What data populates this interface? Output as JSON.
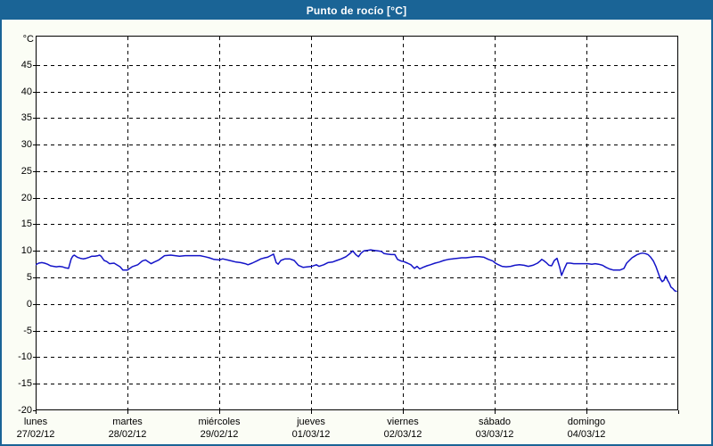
{
  "window": {
    "title": "Punto de rocío [°C]"
  },
  "colors": {
    "window_border": "#1a6496",
    "titlebar_bg": "#1a6496",
    "title_text": "#ffffff",
    "panel_bg": "#fbfdf5",
    "plot_bg": "#ffffff",
    "grid": "#000000",
    "axis": "#000000",
    "line": "#1414c8"
  },
  "y_axis": {
    "unit_label": "°C"
  },
  "chart_data": {
    "type": "line",
    "title": "Punto de rocío [°C]",
    "ylabel": "°C",
    "ylim": [
      -20,
      50.5
    ],
    "y_ticks": [
      45,
      40,
      35,
      30,
      25,
      20,
      15,
      10,
      5,
      0,
      -5,
      -10,
      -15,
      -20
    ],
    "grid": "dashed",
    "legend": "none",
    "x_unit": "hour_of_week",
    "x_range": [
      0,
      168
    ],
    "x_categories_days": [
      {
        "name": "lunes",
        "date": "27/02/12"
      },
      {
        "name": "martes",
        "date": "28/02/12"
      },
      {
        "name": "miércoles",
        "date": "29/02/12"
      },
      {
        "name": "jueves",
        "date": "01/03/12"
      },
      {
        "name": "viernes",
        "date": "02/03/12"
      },
      {
        "name": "sábado",
        "date": "03/03/12"
      },
      {
        "name": "domingo",
        "date": "04/03/12"
      }
    ],
    "series": [
      {
        "name": "Punto de rocío",
        "color": "#1414c8",
        "points": [
          [
            0,
            7.4
          ],
          [
            0.8,
            7.7
          ],
          [
            1.6,
            7.8
          ],
          [
            2.3,
            7.7
          ],
          [
            3.1,
            7.5
          ],
          [
            3.9,
            7.2
          ],
          [
            4.7,
            7.1
          ],
          [
            5.4,
            7.0
          ],
          [
            6.2,
            7.1
          ],
          [
            7.0,
            7.0
          ],
          [
            7.8,
            6.8
          ],
          [
            8.6,
            6.7
          ],
          [
            9.3,
            8.5
          ],
          [
            9.7,
            9.0
          ],
          [
            10.1,
            9.2
          ],
          [
            10.9,
            8.8
          ],
          [
            11.7,
            8.6
          ],
          [
            12.4,
            8.5
          ],
          [
            13.2,
            8.6
          ],
          [
            14.0,
            8.8
          ],
          [
            14.7,
            9.0
          ],
          [
            15.5,
            9.0
          ],
          [
            16.3,
            9.1
          ],
          [
            16.7,
            9.2
          ],
          [
            17.1,
            9.0
          ],
          [
            17.9,
            8.2
          ],
          [
            18.6,
            8.0
          ],
          [
            19.3,
            7.6
          ],
          [
            20.5,
            7.7
          ],
          [
            22.1,
            7.0
          ],
          [
            22.8,
            6.4
          ],
          [
            24.0,
            6.4
          ],
          [
            25.2,
            7.0
          ],
          [
            26.7,
            7.4
          ],
          [
            27.9,
            8.1
          ],
          [
            28.7,
            8.3
          ],
          [
            30.2,
            7.6
          ],
          [
            31.0,
            7.9
          ],
          [
            32.2,
            8.3
          ],
          [
            33.7,
            9.1
          ],
          [
            35.3,
            9.2
          ],
          [
            37.6,
            9.0
          ],
          [
            39.1,
            9.1
          ],
          [
            40.8,
            9.1
          ],
          [
            43.0,
            9.1
          ],
          [
            44.3,
            8.9
          ],
          [
            45.4,
            8.7
          ],
          [
            46.6,
            8.4
          ],
          [
            48.0,
            8.3
          ],
          [
            48.9,
            8.5
          ],
          [
            50.1,
            8.3
          ],
          [
            51.3,
            8.1
          ],
          [
            52.4,
            7.9
          ],
          [
            53.6,
            7.8
          ],
          [
            54.8,
            7.6
          ],
          [
            55.5,
            7.4
          ],
          [
            56.6,
            7.7
          ],
          [
            57.8,
            8.1
          ],
          [
            58.9,
            8.5
          ],
          [
            59.9,
            8.7
          ],
          [
            60.6,
            8.8
          ],
          [
            61.7,
            9.2
          ],
          [
            62.2,
            9.4
          ],
          [
            62.9,
            7.8
          ],
          [
            63.4,
            7.5
          ],
          [
            64.1,
            8.2
          ],
          [
            65.2,
            8.5
          ],
          [
            66.4,
            8.5
          ],
          [
            67.6,
            8.2
          ],
          [
            68.7,
            7.3
          ],
          [
            69.9,
            6.9
          ],
          [
            71.1,
            7.0
          ],
          [
            72.2,
            7.1
          ],
          [
            73.4,
            7.4
          ],
          [
            74.1,
            7.1
          ],
          [
            75.3,
            7.4
          ],
          [
            76.4,
            7.8
          ],
          [
            77.6,
            7.9
          ],
          [
            78.7,
            8.2
          ],
          [
            79.9,
            8.5
          ],
          [
            81.1,
            8.9
          ],
          [
            82.0,
            9.4
          ],
          [
            82.9,
            10.0
          ],
          [
            83.7,
            9.3
          ],
          [
            84.4,
            8.9
          ],
          [
            85.1,
            9.6
          ],
          [
            85.8,
            10.0
          ],
          [
            86.7,
            10.1
          ],
          [
            87.6,
            10.2
          ],
          [
            88.5,
            10.1
          ],
          [
            89.5,
            10.0
          ],
          [
            90.4,
            9.9
          ],
          [
            91.1,
            9.5
          ],
          [
            92.0,
            9.4
          ],
          [
            93.0,
            9.3
          ],
          [
            93.9,
            9.3
          ],
          [
            94.6,
            8.4
          ],
          [
            95.5,
            8.1
          ],
          [
            96.2,
            8.0
          ],
          [
            97.2,
            7.7
          ],
          [
            98.1,
            7.4
          ],
          [
            99.0,
            6.7
          ],
          [
            99.7,
            7.1
          ],
          [
            100.4,
            6.6
          ],
          [
            101.3,
            6.9
          ],
          [
            102.3,
            7.2
          ],
          [
            103.2,
            7.4
          ],
          [
            104.4,
            7.7
          ],
          [
            105.5,
            7.9
          ],
          [
            106.7,
            8.2
          ],
          [
            107.9,
            8.4
          ],
          [
            109.0,
            8.5
          ],
          [
            110.2,
            8.6
          ],
          [
            111.4,
            8.7
          ],
          [
            112.5,
            8.7
          ],
          [
            113.7,
            8.8
          ],
          [
            114.9,
            8.9
          ],
          [
            116.0,
            8.9
          ],
          [
            117.2,
            8.8
          ],
          [
            118.4,
            8.4
          ],
          [
            119.5,
            8.1
          ],
          [
            120.2,
            7.7
          ],
          [
            120.7,
            7.5
          ],
          [
            121.9,
            7.1
          ],
          [
            123.0,
            7.0
          ],
          [
            124.2,
            7.1
          ],
          [
            125.3,
            7.3
          ],
          [
            126.5,
            7.4
          ],
          [
            127.7,
            7.3
          ],
          [
            128.8,
            7.1
          ],
          [
            130.0,
            7.3
          ],
          [
            131.2,
            7.7
          ],
          [
            131.9,
            8.1
          ],
          [
            132.3,
            8.4
          ],
          [
            132.8,
            8.2
          ],
          [
            133.5,
            7.8
          ],
          [
            134.2,
            7.3
          ],
          [
            134.9,
            7.2
          ],
          [
            135.6,
            8.2
          ],
          [
            136.3,
            8.6
          ],
          [
            137.0,
            6.9
          ],
          [
            137.5,
            5.4
          ],
          [
            138.2,
            6.6
          ],
          [
            138.9,
            7.7
          ],
          [
            139.8,
            7.7
          ],
          [
            140.7,
            7.6
          ],
          [
            141.6,
            7.6
          ],
          [
            142.6,
            7.6
          ],
          [
            143.5,
            7.6
          ],
          [
            144.4,
            7.6
          ],
          [
            145.4,
            7.5
          ],
          [
            146.3,
            7.6
          ],
          [
            147.2,
            7.5
          ],
          [
            148.2,
            7.3
          ],
          [
            149.1,
            6.9
          ],
          [
            150.0,
            6.6
          ],
          [
            151.0,
            6.4
          ],
          [
            151.9,
            6.4
          ],
          [
            152.8,
            6.4
          ],
          [
            153.8,
            6.7
          ],
          [
            154.5,
            7.7
          ],
          [
            155.2,
            8.2
          ],
          [
            155.9,
            8.7
          ],
          [
            156.6,
            9.0
          ],
          [
            157.3,
            9.3
          ],
          [
            158.0,
            9.5
          ],
          [
            158.7,
            9.6
          ],
          [
            159.4,
            9.5
          ],
          [
            160.1,
            9.3
          ],
          [
            160.8,
            8.8
          ],
          [
            161.5,
            8.1
          ],
          [
            162.2,
            7.0
          ],
          [
            162.9,
            5.6
          ],
          [
            163.3,
            4.8
          ],
          [
            163.8,
            4.2
          ],
          [
            164.3,
            4.5
          ],
          [
            164.7,
            5.3
          ],
          [
            165.2,
            4.5
          ],
          [
            165.7,
            3.9
          ],
          [
            166.1,
            3.2
          ],
          [
            166.6,
            2.9
          ],
          [
            167.1,
            2.5
          ],
          [
            167.5,
            2.4
          ]
        ]
      }
    ]
  }
}
